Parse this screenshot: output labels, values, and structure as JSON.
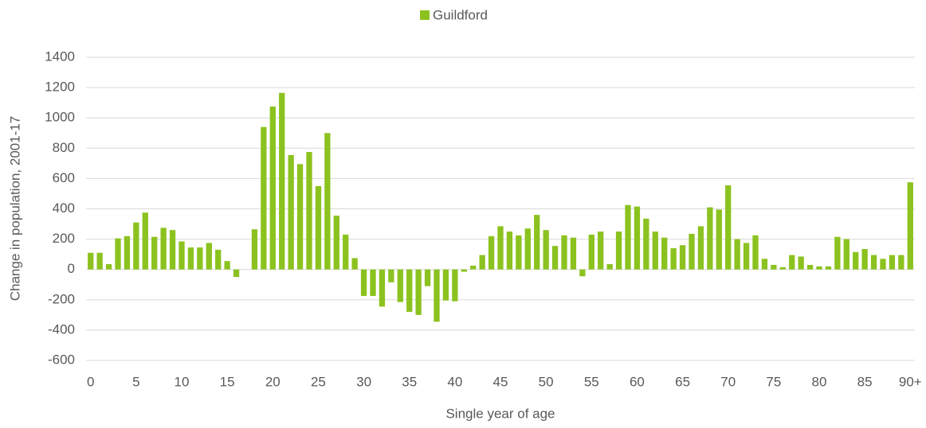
{
  "chart_data": {
    "type": "bar",
    "x_label": "Single year of age",
    "y_label": "Change in population, 2001-17",
    "categories": [
      "0",
      null,
      null,
      null,
      null,
      "5",
      null,
      null,
      null,
      null,
      "10",
      null,
      null,
      null,
      null,
      "15",
      null,
      null,
      null,
      null,
      "20",
      null,
      null,
      null,
      null,
      "25",
      null,
      null,
      null,
      null,
      "30",
      null,
      null,
      null,
      null,
      "35",
      null,
      null,
      null,
      null,
      "40",
      null,
      null,
      null,
      null,
      "45",
      null,
      null,
      null,
      null,
      "50",
      null,
      null,
      null,
      null,
      "55",
      null,
      null,
      null,
      null,
      "60",
      null,
      null,
      null,
      null,
      "65",
      null,
      null,
      null,
      null,
      "70",
      null,
      null,
      null,
      null,
      "75",
      null,
      null,
      null,
      null,
      "80",
      null,
      null,
      null,
      null,
      "85",
      null,
      null,
      null,
      null,
      "90+"
    ],
    "series": [
      {
        "name": "Guildford",
        "color": "#8cc21f",
        "values": [
          110,
          110,
          35,
          205,
          220,
          310,
          375,
          215,
          275,
          260,
          185,
          145,
          145,
          175,
          130,
          55,
          -50,
          0,
          265,
          940,
          1075,
          1165,
          755,
          695,
          775,
          550,
          900,
          355,
          230,
          75,
          -175,
          -175,
          -245,
          -85,
          -215,
          -280,
          -300,
          -110,
          -345,
          -205,
          -210,
          -15,
          25,
          95,
          220,
          285,
          250,
          225,
          270,
          360,
          260,
          155,
          225,
          210,
          -45,
          230,
          250,
          35,
          250,
          425,
          415,
          335,
          250,
          210,
          140,
          160,
          235,
          285,
          410,
          395,
          555,
          200,
          175,
          225,
          70,
          30,
          15,
          95,
          85,
          30,
          20,
          20,
          215,
          200,
          115,
          135,
          95,
          70,
          95,
          95,
          575
        ]
      }
    ],
    "ylim": [
      -600,
      1400
    ],
    "yticks": [
      -600,
      -400,
      -200,
      0,
      200,
      400,
      600,
      800,
      1000,
      1200,
      1400
    ],
    "grid": true,
    "legend": "top"
  }
}
